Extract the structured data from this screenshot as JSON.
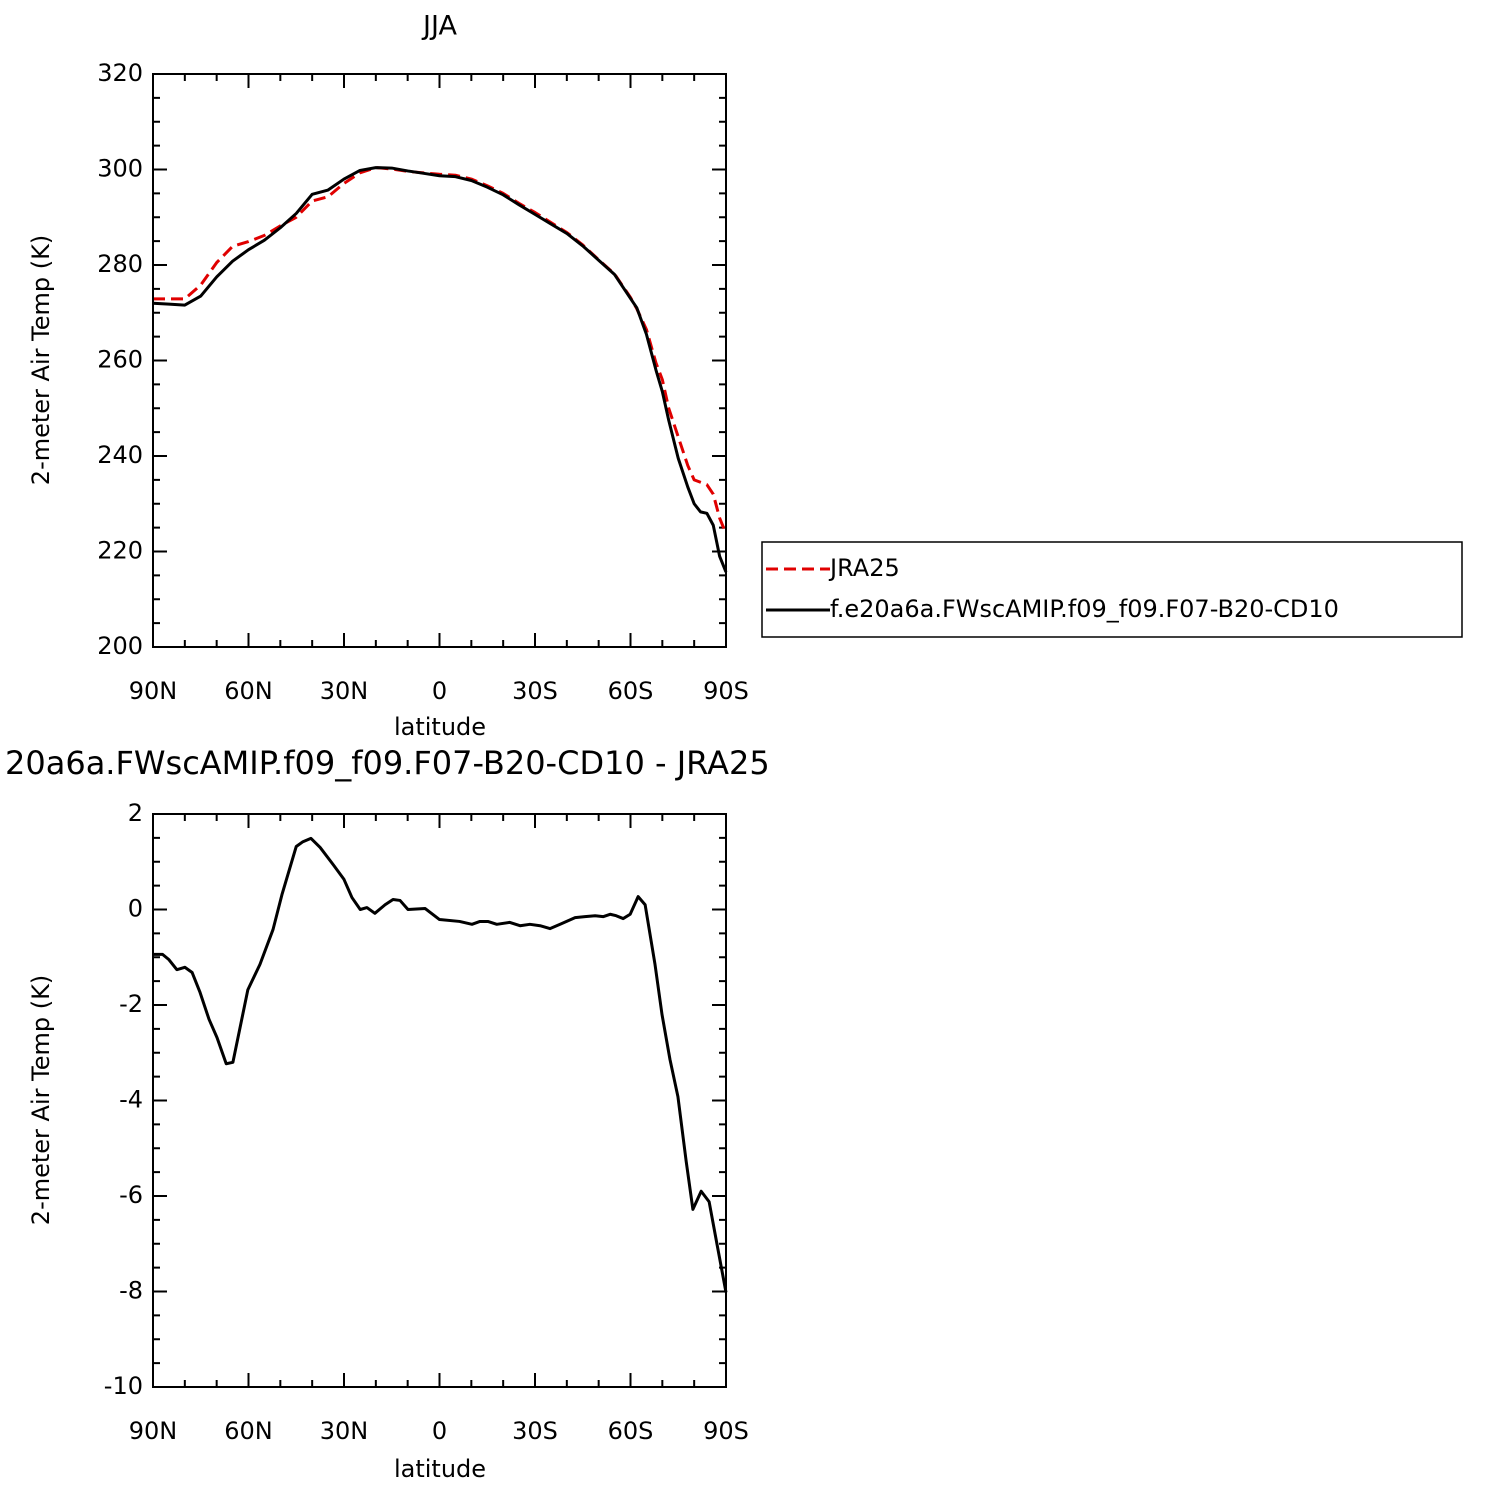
{
  "chart_data": [
    {
      "type": "line",
      "title": "JJA",
      "xlabel": "latitude",
      "ylabel": "2-meter Air Temp (K)",
      "x": [
        90,
        85,
        80,
        75,
        70,
        65,
        60,
        55,
        50,
        45,
        40,
        35,
        30,
        25,
        20,
        15,
        10,
        5,
        0,
        -5,
        -10,
        -15,
        -20,
        -25,
        -30,
        -35,
        -40,
        -45,
        -50,
        -55,
        -60,
        -62,
        -65,
        -68,
        -70,
        -72,
        -75,
        -78,
        -80,
        -82,
        -84,
        -86,
        -88,
        -90
      ],
      "series": [
        {
          "name": "JRA25",
          "color": "#e00000",
          "dashed": true,
          "values": [
            272.9,
            272.9,
            272.9,
            275.8,
            280.5,
            283.9,
            284.9,
            286.2,
            288.2,
            290,
            293.4,
            294.3,
            297.1,
            299.3,
            300.4,
            300.1,
            299.6,
            299.3,
            299,
            298.8,
            298,
            296.6,
            295,
            292.9,
            291,
            288.9,
            286.8,
            284.2,
            281.1,
            278.1,
            273.2,
            270.8,
            266.5,
            259.5,
            256,
            250,
            244,
            238,
            235,
            234.5,
            234,
            232,
            227,
            223.7
          ]
        },
        {
          "name": "f.e20a6a.FWscAMIP.f09_f09.F07-B20-CD10",
          "color": "#000000",
          "dashed": false,
          "values": [
            272,
            271.8,
            271.6,
            273.5,
            277.5,
            280.8,
            283.2,
            285.2,
            287.8,
            290.8,
            294.8,
            295.7,
            298,
            299.8,
            300.4,
            300.3,
            299.7,
            299.2,
            298.7,
            298.5,
            297.7,
            296.3,
            294.7,
            292.6,
            290.6,
            288.6,
            286.6,
            284,
            281,
            278,
            273,
            271,
            265.5,
            258,
            253.5,
            247.5,
            239.5,
            233.5,
            230,
            228.3,
            228,
            225.5,
            219,
            215.7
          ]
        }
      ],
      "xlim": [
        90,
        -90
      ],
      "xticks": [
        {
          "value": 90,
          "label": "90N"
        },
        {
          "value": 60,
          "label": "60N"
        },
        {
          "value": 30,
          "label": "30N"
        },
        0,
        {
          "value": -30,
          "label": "30S"
        },
        {
          "value": -60,
          "label": "60S"
        },
        {
          "value": -90,
          "label": "90S"
        }
      ],
      "ylim": [
        200,
        320
      ],
      "yticks": [
        200,
        220,
        240,
        260,
        280,
        300,
        320
      ],
      "legend": "right"
    },
    {
      "type": "line",
      "title": "20a6a.FWscAMIP.f09_f09.F07-B20-CD10 - JRA25",
      "xlabel": "latitude",
      "ylabel": "2-meter Air Temp (K)",
      "x": [
        90,
        87,
        85,
        82.5,
        80,
        77.7,
        75.2,
        72.4,
        69.9,
        67,
        64.9,
        60.2,
        56.4,
        52.3,
        49.5,
        45,
        42.9,
        40.4,
        37.5,
        33.4,
        30,
        27.5,
        24.9,
        22.8,
        20.3,
        17.1,
        14.6,
        12.4,
        9.9,
        4.5,
        0,
        -6.3,
        -10.2,
        -12.7,
        -15.2,
        -18,
        -22.1,
        -25.3,
        -28.4,
        -31.6,
        -34.7,
        -37.9,
        -42.6,
        -45.7,
        -48.9,
        -51.4,
        -53.6,
        -55.5,
        -57.7,
        -59.9,
        -62.4,
        -64.6,
        -67.7,
        -69.9,
        -72.4,
        -74.9,
        -77.5,
        -79.6,
        -82.2,
        -84.7,
        -87.2,
        -90
      ],
      "values": [
        -0.94,
        -0.94,
        -1.05,
        -1.26,
        -1.21,
        -1.32,
        -1.74,
        -2.3,
        -2.68,
        -3.23,
        -3.2,
        -1.68,
        -1.15,
        -0.42,
        0.31,
        1.32,
        1.42,
        1.49,
        1.3,
        0.94,
        0.63,
        0.25,
        0,
        0.04,
        -0.08,
        0.1,
        0.21,
        0.19,
        0,
        0.02,
        -0.21,
        -0.25,
        -0.31,
        -0.25,
        -0.25,
        -0.31,
        -0.27,
        -0.34,
        -0.31,
        -0.34,
        -0.4,
        -0.31,
        -0.17,
        -0.15,
        -0.13,
        -0.15,
        -0.1,
        -0.13,
        -0.19,
        -0.1,
        0.27,
        0.1,
        -1.15,
        -2.2,
        -3.14,
        -3.92,
        -5.28,
        -6.28,
        -5.9,
        -6.12,
        -7.02,
        -8.02
      ],
      "color": "#000000",
      "xlim": [
        90,
        -90
      ],
      "xticks": [
        {
          "value": 90,
          "label": "90N"
        },
        {
          "value": 60,
          "label": "60N"
        },
        {
          "value": 30,
          "label": "30N"
        },
        0,
        {
          "value": -30,
          "label": "30S"
        },
        {
          "value": -60,
          "label": "60S"
        },
        {
          "value": -90,
          "label": "90S"
        }
      ],
      "ylim": [
        -10,
        2
      ],
      "yticks": [
        -10,
        -8,
        -6,
        -4,
        -2,
        0,
        2
      ]
    }
  ]
}
